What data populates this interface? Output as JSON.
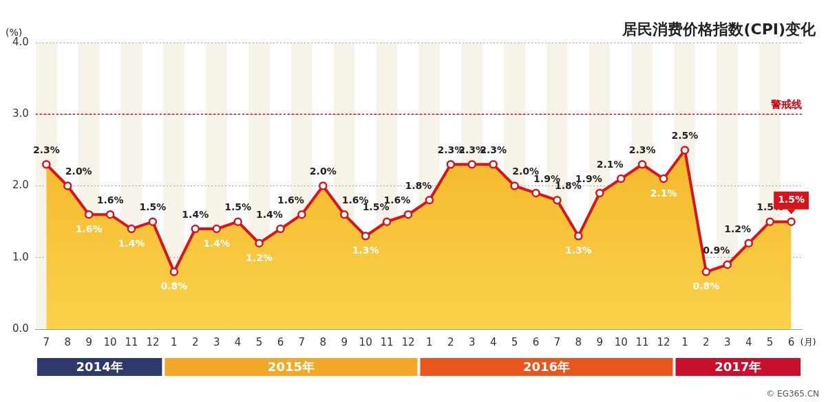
{
  "chart_data": {
    "type": "line",
    "title": "居民消费价格指数(CPI)变化",
    "y_label": "(%)",
    "x_label": "(月)",
    "categories": [
      "7",
      "8",
      "9",
      "10",
      "11",
      "12",
      "1",
      "2",
      "3",
      "4",
      "5",
      "6",
      "7",
      "8",
      "9",
      "10",
      "11",
      "12",
      "1",
      "2",
      "3",
      "4",
      "5",
      "6",
      "7",
      "8",
      "9",
      "10",
      "11",
      "12",
      "1",
      "2",
      "3",
      "4",
      "5",
      "6"
    ],
    "category_years": [
      "2014年",
      "2014年",
      "2014年",
      "2014年",
      "2014年",
      "2014年",
      "2015年",
      "2015年",
      "2015年",
      "2015年",
      "2015年",
      "2015年",
      "2015年",
      "2015年",
      "2015年",
      "2015年",
      "2015年",
      "2015年",
      "2016年",
      "2016年",
      "2016年",
      "2016年",
      "2016年",
      "2016年",
      "2016年",
      "2016年",
      "2016年",
      "2016年",
      "2016年",
      "2016年",
      "2017年",
      "2017年",
      "2017年",
      "2017年",
      "2017年",
      "2017年"
    ],
    "values": [
      2.3,
      2.0,
      1.6,
      1.6,
      1.4,
      1.5,
      0.8,
      1.4,
      1.4,
      1.5,
      1.2,
      1.4,
      1.6,
      2.0,
      1.6,
      1.3,
      1.5,
      1.6,
      1.8,
      2.3,
      2.3,
      2.3,
      2.0,
      1.9,
      1.8,
      1.3,
      1.9,
      2.1,
      2.3,
      2.1,
      2.5,
      0.8,
      0.9,
      1.2,
      1.5,
      1.5
    ],
    "value_labels": [
      "2.3%",
      "2.0%",
      "1.6%",
      "1.6%",
      "1.4%",
      "1.5%",
      "0.8%",
      "1.4%",
      "1.4%",
      "1.5%",
      "1.2%",
      "1.4%",
      "1.6%",
      "2.0%",
      "1.6%",
      "1.3%",
      "1.5%",
      "1.6%",
      "1.8%",
      "2.3%",
      "2.3%",
      "2.3%",
      "2.0%",
      "1.9%",
      "1.8%",
      "1.3%",
      "1.9%",
      "2.1%",
      "2.3%",
      "2.1%",
      "2.5%",
      "0.8%",
      "0.9%",
      "1.2%",
      "1.5%",
      "1.5%"
    ],
    "color": "#d7141a",
    "marker": "circle",
    "ylim": [
      0,
      4
    ],
    "yticks": [
      {
        "value": 0,
        "label": "0.0"
      },
      {
        "value": 1,
        "label": "1.0"
      },
      {
        "value": 2,
        "label": "2.0"
      },
      {
        "value": 3,
        "label": "3.0"
      },
      {
        "value": 4,
        "label": "4.0"
      }
    ],
    "grid": true,
    "data_labels": true,
    "annotations": [
      {
        "type": "hline",
        "value": 3,
        "label": "警戒线",
        "color": "#d7000f"
      }
    ],
    "source": "© EG365.CN"
  }
}
